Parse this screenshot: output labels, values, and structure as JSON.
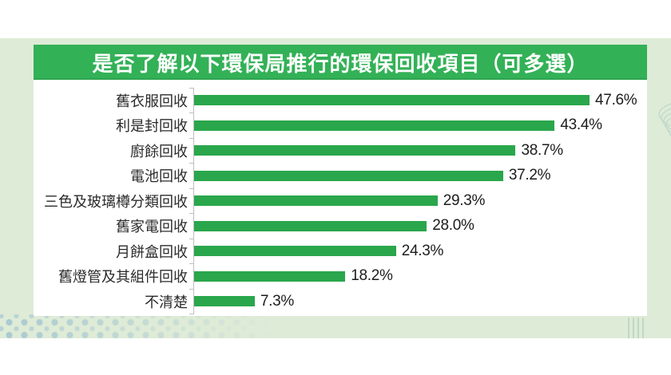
{
  "page": {
    "background_color": "#ffffff",
    "band_color": "#deebd7",
    "decor": {
      "dots_color": "#7dacCC",
      "waves_color": "#b9d6cb",
      "stripes_color": "#96c3ac"
    }
  },
  "header": {
    "title": "是否了解以下環保局推行的環保回收項目（可多選）",
    "banner_color": "#33b157",
    "text_color": "#ffffff"
  },
  "chart_data": {
    "type": "bar",
    "orientation": "horizontal",
    "title": "是否了解以下環保局推行的環保回收項目（可多選）",
    "categories": [
      "舊衣服回收",
      "利是封回收",
      "廚餘回收",
      "電池回收",
      "三色及玻璃樽分類回收",
      "舊家電回收",
      "月餅盒回收",
      "舊燈管及其組件回收",
      "不清楚"
    ],
    "values": [
      47.6,
      43.4,
      38.7,
      37.2,
      29.3,
      28.0,
      24.3,
      18.2,
      7.3
    ],
    "value_labels": [
      "47.6%",
      "43.4%",
      "38.7%",
      "37.2%",
      "29.3%",
      "28.0%",
      "24.3%",
      "18.2%",
      "7.3%"
    ],
    "bar_color": "#2aa64c",
    "axis_color": "#bfbfbf",
    "xlim": [
      0,
      50
    ],
    "grid": false,
    "legend": false,
    "value_labels_shown": true
  }
}
